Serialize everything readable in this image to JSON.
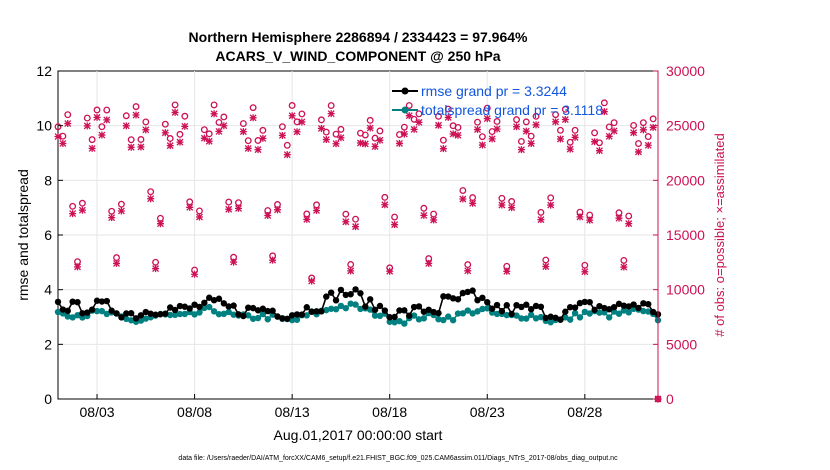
{
  "chart_data": {
    "type": "line",
    "title_line1": "Northern Hemisphere 2286894 / 2334423 = 97.964%",
    "title_line2": "ACARS_V_WIND_COMPONENT @ 250 hPa",
    "xlabel": "Aug.01,2017 00:00:00 start",
    "ylabel_left": "rmse and totalspread",
    "ylabel_right": "# of obs: o=possible; ×=assimilated",
    "footer": "data file: /Users/raeder/DAI/ATM_forcXX/CAM6_setup/f.e21.FHIST_BGC.f09_025.CAM6assim.011/Diags_NTrS_2017-08/obs_diag_output.nc",
    "x_ticks": [
      "08/03",
      "08/08",
      "08/13",
      "08/18",
      "08/23",
      "08/28"
    ],
    "x_tick_days": [
      3,
      8,
      13,
      18,
      23,
      28
    ],
    "x_range_days": [
      1.0,
      31.75
    ],
    "y_left_ticks": [
      "0",
      "2",
      "4",
      "6",
      "8",
      "10",
      "12"
    ],
    "y_left_range": [
      0,
      12
    ],
    "y_right_ticks": [
      "0",
      "5000",
      "10000",
      "15000",
      "20000",
      "25000",
      "30000"
    ],
    "y_right_range": [
      0,
      30000
    ],
    "series": [
      {
        "name": "rmse grand pr = 3.3244",
        "color": "#000000",
        "role": "rmse",
        "base": 3.3,
        "amp": 0.45
      },
      {
        "name": "totalspread grand pr = 3.1118",
        "color": "#008080",
        "role": "spread",
        "base": 3.05,
        "amp": 0.25
      }
    ],
    "obs_cycle_profile": [
      26000,
      24500,
      25500,
      18000,
      12000,
      17500,
      25000,
      24000
    ],
    "colors": {
      "rmse": "#000000",
      "spread": "#008080",
      "obs": "#cc1155",
      "right_axis": "#cc1155",
      "legend_text": "#1155dd"
    }
  }
}
